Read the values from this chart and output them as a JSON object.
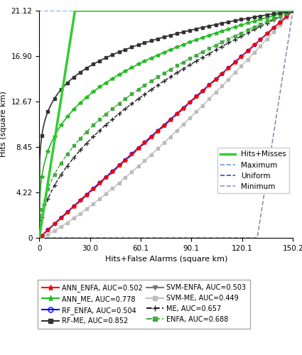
{
  "xlabel": "Hits+False Alarms (square km)",
  "ylabel": "Hits (square km)",
  "xlim": [
    0,
    150.2
  ],
  "ylim": [
    0,
    21.12
  ],
  "xticks": [
    0,
    30.0,
    60.1,
    90.1,
    120.1,
    150.2
  ],
  "yticks": [
    0,
    4.22,
    8.45,
    12.67,
    16.9,
    21.12
  ],
  "max_hits": 21.12,
  "max_hfa": 150.2,
  "curves": {
    "ANN_ENFA": {
      "auc": 0.502,
      "color": "red",
      "lw": 1.0,
      "ls": "-",
      "marker": "*",
      "ms": 4,
      "zorder": 4,
      "mfc": "red"
    },
    "ANN_ME": {
      "auc": 0.778,
      "color": "#22bb22",
      "lw": 1.2,
      "ls": "-",
      "marker": "*",
      "ms": 4,
      "zorder": 5,
      "mfc": "#22bb22"
    },
    "RF_ENFA": {
      "auc": 0.504,
      "color": "blue",
      "lw": 1.0,
      "ls": "-",
      "marker": "o",
      "ms": 3,
      "zorder": 4,
      "mfc": "none"
    },
    "RF_ME": {
      "auc": 0.852,
      "color": "#333333",
      "lw": 1.2,
      "ls": "-",
      "marker": "s",
      "ms": 3,
      "zorder": 5,
      "mfc": "#333333"
    },
    "SVM_ENFA": {
      "auc": 0.503,
      "color": "#777777",
      "lw": 1.0,
      "ls": "-",
      "marker": "v",
      "ms": 3,
      "zorder": 4,
      "mfc": "#777777"
    },
    "SVM_ME": {
      "auc": 0.449,
      "color": "#bbbbbb",
      "lw": 1.0,
      "ls": "-",
      "marker": "s",
      "ms": 3,
      "zorder": 3,
      "mfc": "#bbbbbb"
    },
    "ME": {
      "auc": 0.657,
      "color": "#222222",
      "lw": 1.0,
      "ls": "--",
      "marker": "+",
      "ms": 5,
      "zorder": 4,
      "mfc": "#222222"
    },
    "ENFA": {
      "auc": 0.688,
      "color": "#44aa44",
      "lw": 1.0,
      "ls": "--",
      "marker": "s",
      "ms": 3,
      "zorder": 4,
      "mfc": "#44aa44"
    }
  },
  "ref_lines": {
    "hits_misses": {
      "color": "#33cc33",
      "lw": 2.5,
      "ls": "-"
    },
    "maximum": {
      "color": "#6699dd",
      "lw": 1.2,
      "ls": "--"
    },
    "uniform": {
      "color": "#3344cc",
      "lw": 1.2,
      "ls": "--"
    },
    "minimum": {
      "color": "#9988bb",
      "lw": 1.2,
      "ls": "--"
    }
  },
  "legend1_items": [
    {
      "label": "Hits+Misses",
      "color": "#33cc33",
      "lw": 2.5,
      "ls": "-"
    },
    {
      "label": "Maximum",
      "color": "#6699dd",
      "lw": 1.2,
      "ls": "--"
    },
    {
      "label": "Uniform",
      "color": "#3344cc",
      "lw": 1.2,
      "ls": "--"
    },
    {
      "label": "Minimum",
      "color": "#9988bb",
      "lw": 1.2,
      "ls": "--"
    }
  ],
  "legend2_items": [
    {
      "label": "ANN_ENFA, AUC=0.502",
      "color": "red",
      "ls": "-",
      "marker": "*",
      "ms": 6,
      "mfc": "red",
      "lw": 1.5
    },
    {
      "label": "ANN_ME, AUC=0.778",
      "color": "#22bb22",
      "ls": "-",
      "marker": "*",
      "ms": 6,
      "mfc": "#22bb22",
      "lw": 1.5
    },
    {
      "label": "RF_ENFA, AUC=0.504",
      "color": "blue",
      "ls": "-",
      "marker": "o",
      "ms": 5,
      "mfc": "none",
      "lw": 1.5
    },
    {
      "label": "RF-ME, AUC=0.852",
      "color": "#333333",
      "ls": "-",
      "marker": "s",
      "ms": 5,
      "mfc": "#333333",
      "lw": 1.5
    },
    {
      "label": "SVM-ENFA, AUC=0.503",
      "color": "#777777",
      "ls": "-",
      "marker": "v",
      "ms": 5,
      "mfc": "#777777",
      "lw": 1.5
    },
    {
      "label": "SVM-ME, AUC=0.449",
      "color": "#bbbbbb",
      "ls": "-",
      "marker": "s",
      "ms": 5,
      "mfc": "#bbbbbb",
      "lw": 1.5
    },
    {
      "label": "ME, AUC=0.657",
      "color": "#222222",
      "ls": "--",
      "marker": "+",
      "ms": 6,
      "mfc": "#222222",
      "lw": 1.5
    },
    {
      "label": "ENFA, AUC=0.688",
      "color": "#44aa44",
      "ls": "--",
      "marker": "s",
      "ms": 5,
      "mfc": "#44aa44",
      "lw": 1.5
    }
  ]
}
